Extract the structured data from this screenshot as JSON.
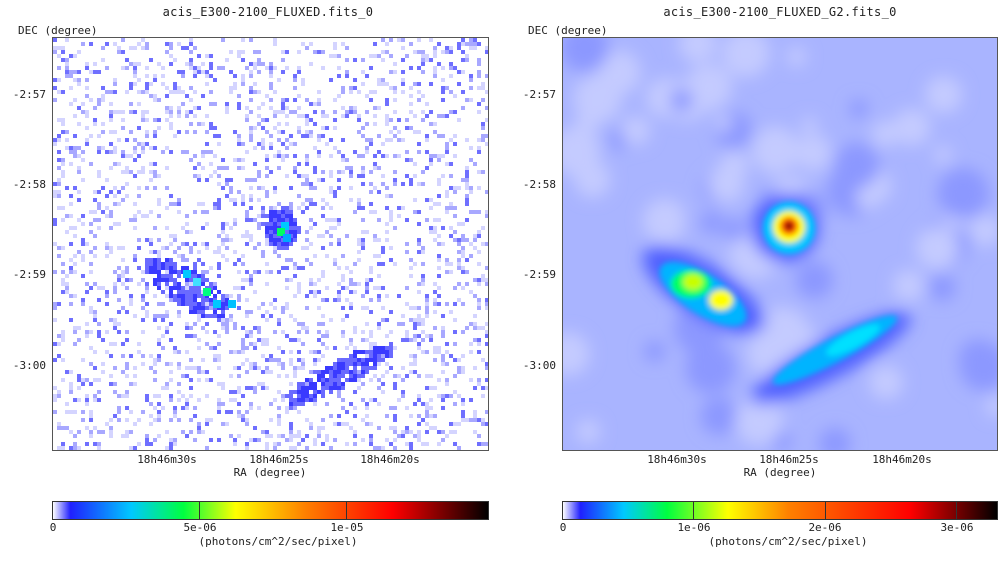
{
  "panels": [
    {
      "title": "acis_E300-2100_FLUXED.fits_0",
      "ylabel": "DEC (degree)",
      "xlabel": "RA (degree)",
      "yticks": [
        "-2:57",
        "-2:58",
        "-2:59",
        "-3:00"
      ],
      "xticks": [
        "18h46m30s",
        "18h46m25s",
        "18h46m20s"
      ],
      "colorbar": {
        "ticks": [
          "0",
          "5e-06",
          "1e-05"
        ],
        "unit": "(photons/cm^2/sec/pixel)"
      }
    },
    {
      "title": "acis_E300-2100_FLUXED_G2.fits_0",
      "ylabel": "DEC (degree)",
      "xlabel": "RA (degree)",
      "yticks": [
        "-2:57",
        "-2:58",
        "-2:59",
        "-3:00"
      ],
      "xticks": [
        "18h46m30s",
        "18h46m25s",
        "18h46m20s"
      ],
      "colorbar": {
        "ticks": [
          "0",
          "1e-06",
          "2e-06",
          "3e-06"
        ],
        "unit": "(photons/cm^2/sec/pixel)"
      }
    }
  ],
  "colormap": [
    "#ffffff",
    "#1a1aff",
    "#00c8ff",
    "#00ff40",
    "#ffff00",
    "#ff8000",
    "#ff0000",
    "#000000"
  ]
}
